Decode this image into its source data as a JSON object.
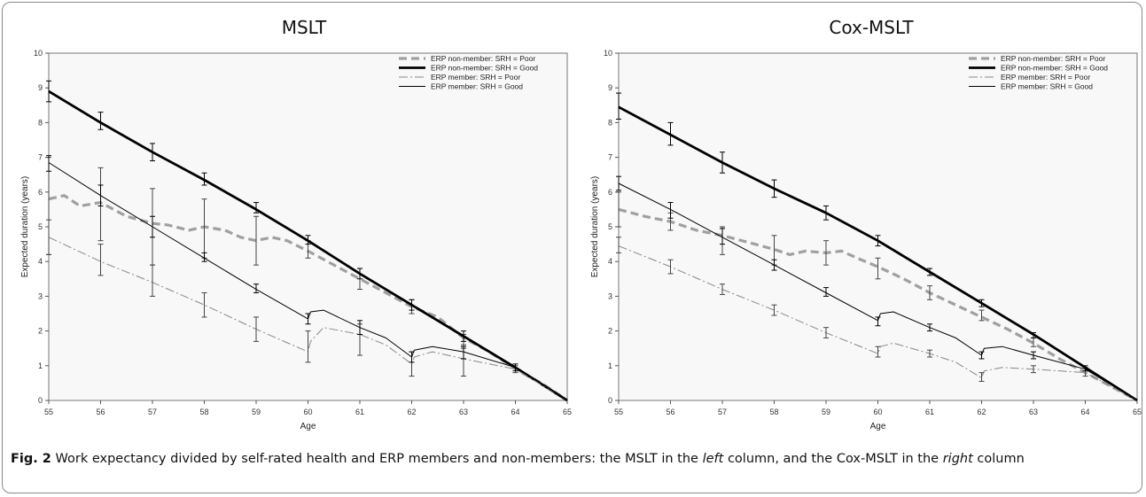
{
  "figure": {
    "caption_label": "Fig. 2",
    "caption_text_1": " Work expectancy divided by self-rated health and ERP members and non-members: the MSLT in the ",
    "caption_em_1": "left",
    "caption_text_2": " column, and the Cox-MSLT in the ",
    "caption_em_2": "right",
    "caption_text_3": " column"
  },
  "chart_data": [
    {
      "type": "line",
      "title": "MSLT",
      "xlabel": "Age",
      "ylabel": "Expected duration (years)",
      "xlim": [
        55,
        65
      ],
      "ylim": [
        0,
        10
      ],
      "xticks": [
        "55",
        "56",
        "57",
        "58",
        "59",
        "60",
        "61",
        "62",
        "63",
        "64",
        "65"
      ],
      "yticks": [
        "0",
        "1",
        "2",
        "3",
        "4",
        "5",
        "6",
        "7",
        "8",
        "9",
        "10"
      ],
      "legend_position": "top-right",
      "series": [
        {
          "name": "ERP non-member: SRH = Poor",
          "style": "dashed-thick",
          "color": "#a0a0a0",
          "x": [
            55,
            55.3,
            55.6,
            56,
            56.5,
            57,
            57.3,
            57.7,
            58,
            58.4,
            58.7,
            59,
            59.3,
            59.6,
            60,
            60.5,
            61,
            61.5,
            62,
            62.5,
            63,
            63.5,
            64,
            64.5,
            65
          ],
          "y": [
            5.8,
            5.9,
            5.6,
            5.7,
            5.3,
            5.1,
            5.05,
            4.9,
            5.0,
            4.9,
            4.7,
            4.6,
            4.7,
            4.6,
            4.3,
            3.9,
            3.5,
            3.1,
            2.7,
            2.4,
            1.8,
            1.4,
            0.9,
            0.5,
            0.0
          ],
          "errors": [
            {
              "x": 55,
              "lo": 4.2,
              "hi": 7.0
            },
            {
              "x": 56,
              "lo": 4.6,
              "hi": 6.7
            },
            {
              "x": 57,
              "lo": 3.9,
              "hi": 6.1
            },
            {
              "x": 58,
              "lo": 4.1,
              "hi": 5.8
            },
            {
              "x": 59,
              "lo": 3.9,
              "hi": 5.3
            },
            {
              "x": 60,
              "lo": 4.1,
              "hi": 4.6
            },
            {
              "x": 61,
              "lo": 3.2,
              "hi": 3.8
            },
            {
              "x": 62,
              "lo": 2.5,
              "hi": 2.9
            },
            {
              "x": 63,
              "lo": 1.5,
              "hi": 1.9
            },
            {
              "x": 64,
              "lo": 0.8,
              "hi": 1.0
            }
          ]
        },
        {
          "name": "ERP non-member: SRH = Good",
          "style": "solid-thick",
          "color": "#000000",
          "x": [
            55,
            56,
            57,
            58,
            59,
            60,
            61,
            62,
            63,
            64,
            65
          ],
          "y": [
            8.9,
            8.0,
            7.15,
            6.35,
            5.5,
            4.6,
            3.65,
            2.75,
            1.85,
            0.95,
            0.0
          ],
          "errors": [
            {
              "x": 55,
              "lo": 8.6,
              "hi": 9.2
            },
            {
              "x": 56,
              "lo": 7.8,
              "hi": 8.3
            },
            {
              "x": 57,
              "lo": 6.9,
              "hi": 7.4
            },
            {
              "x": 58,
              "lo": 6.2,
              "hi": 6.55
            },
            {
              "x": 59,
              "lo": 5.4,
              "hi": 5.7
            },
            {
              "x": 60,
              "lo": 4.5,
              "hi": 4.75
            },
            {
              "x": 61,
              "lo": 3.5,
              "hi": 3.8
            },
            {
              "x": 62,
              "lo": 2.6,
              "hi": 2.9
            },
            {
              "x": 63,
              "lo": 1.7,
              "hi": 2.0
            },
            {
              "x": 64,
              "lo": 0.85,
              "hi": 1.05
            }
          ]
        },
        {
          "name": "ERP member: SRH = Poor",
          "style": "dashdot-thin",
          "color": "#888888",
          "x": [
            55,
            56,
            57,
            58,
            59,
            60,
            60.05,
            60.3,
            61,
            61.5,
            62,
            62.05,
            62.4,
            63,
            64,
            65
          ],
          "y": [
            4.7,
            4.0,
            3.4,
            2.75,
            2.05,
            1.4,
            1.7,
            2.1,
            1.9,
            1.6,
            1.05,
            1.25,
            1.4,
            1.2,
            0.9,
            0.0
          ],
          "errors": [
            {
              "x": 55,
              "lo": 4.2,
              "hi": 5.2
            },
            {
              "x": 56,
              "lo": 3.6,
              "hi": 4.5
            },
            {
              "x": 57,
              "lo": 3.0,
              "hi": 3.9
            },
            {
              "x": 58,
              "lo": 2.4,
              "hi": 3.1
            },
            {
              "x": 59,
              "lo": 1.7,
              "hi": 2.4
            },
            {
              "x": 60,
              "lo": 1.1,
              "hi": 2.0
            },
            {
              "x": 61,
              "lo": 1.3,
              "hi": 2.2
            },
            {
              "x": 62,
              "lo": 0.7,
              "hi": 1.4
            },
            {
              "x": 63,
              "lo": 0.7,
              "hi": 1.6
            }
          ]
        },
        {
          "name": "ERP member: SRH = Good",
          "style": "solid-thin",
          "color": "#000000",
          "x": [
            55,
            56,
            57,
            58,
            59,
            60,
            60.05,
            60.3,
            61,
            61.5,
            62,
            62.05,
            62.4,
            63,
            64,
            65
          ],
          "y": [
            6.85,
            5.9,
            5.0,
            4.1,
            3.2,
            2.35,
            2.55,
            2.6,
            2.1,
            1.8,
            1.25,
            1.45,
            1.55,
            1.4,
            0.95,
            0.0
          ],
          "errors": [
            {
              "x": 55,
              "lo": 6.6,
              "hi": 7.05
            },
            {
              "x": 56,
              "lo": 5.6,
              "hi": 6.2
            },
            {
              "x": 57,
              "lo": 4.7,
              "hi": 5.3
            },
            {
              "x": 58,
              "lo": 4.0,
              "hi": 4.25
            },
            {
              "x": 59,
              "lo": 3.1,
              "hi": 3.35
            },
            {
              "x": 60,
              "lo": 2.2,
              "hi": 2.5
            },
            {
              "x": 61,
              "lo": 1.9,
              "hi": 2.3
            },
            {
              "x": 62,
              "lo": 1.1,
              "hi": 1.4
            },
            {
              "x": 63,
              "lo": 1.2,
              "hi": 1.55
            }
          ]
        }
      ]
    },
    {
      "type": "line",
      "title": "Cox-MSLT",
      "xlabel": "Age",
      "ylabel": "Expected duration (years)",
      "xlim": [
        55,
        65
      ],
      "ylim": [
        0,
        10
      ],
      "xticks": [
        "55",
        "56",
        "57",
        "58",
        "59",
        "60",
        "61",
        "62",
        "63",
        "64",
        "65"
      ],
      "yticks": [
        "0",
        "1",
        "2",
        "3",
        "4",
        "5",
        "6",
        "7",
        "8",
        "9",
        "10"
      ],
      "legend_position": "top-right",
      "series": [
        {
          "name": "ERP non-member: SRH = Poor",
          "style": "dashed-thick",
          "color": "#a0a0a0",
          "x": [
            55,
            55.5,
            56,
            56.5,
            57,
            57.5,
            58,
            58.3,
            58.6,
            59,
            59.3,
            59.6,
            60,
            60.5,
            61,
            61.5,
            62,
            62.5,
            63,
            63.5,
            64,
            64.5,
            65
          ],
          "y": [
            5.5,
            5.3,
            5.15,
            4.9,
            4.75,
            4.55,
            4.35,
            4.2,
            4.3,
            4.25,
            4.3,
            4.1,
            3.85,
            3.5,
            3.1,
            2.75,
            2.4,
            2.05,
            1.65,
            1.2,
            0.8,
            0.4,
            0.0
          ],
          "errors": [
            {
              "x": 55,
              "lo": 5.0,
              "hi": 6.0
            },
            {
              "x": 56,
              "lo": 4.9,
              "hi": 5.4
            },
            {
              "x": 57,
              "lo": 4.2,
              "hi": 5.0
            },
            {
              "x": 58,
              "lo": 3.9,
              "hi": 4.75
            },
            {
              "x": 59,
              "lo": 3.9,
              "hi": 4.6
            },
            {
              "x": 60,
              "lo": 3.5,
              "hi": 4.1
            },
            {
              "x": 61,
              "lo": 2.9,
              "hi": 3.3
            },
            {
              "x": 62,
              "lo": 2.3,
              "hi": 2.6
            },
            {
              "x": 63,
              "lo": 1.55,
              "hi": 1.8
            },
            {
              "x": 64,
              "lo": 0.7,
              "hi": 0.95
            }
          ]
        },
        {
          "name": "ERP non-member: SRH = Good",
          "style": "solid-thick",
          "color": "#000000",
          "x": [
            55,
            56,
            57,
            58,
            59,
            60,
            61,
            62,
            63,
            64,
            65
          ],
          "y": [
            8.45,
            7.65,
            6.85,
            6.1,
            5.4,
            4.6,
            3.7,
            2.8,
            1.9,
            0.95,
            0.0
          ],
          "errors": [
            {
              "x": 55,
              "lo": 8.1,
              "hi": 8.85
            },
            {
              "x": 56,
              "lo": 7.35,
              "hi": 8.0
            },
            {
              "x": 57,
              "lo": 6.55,
              "hi": 7.15
            },
            {
              "x": 58,
              "lo": 5.85,
              "hi": 6.35
            },
            {
              "x": 59,
              "lo": 5.2,
              "hi": 5.6
            },
            {
              "x": 60,
              "lo": 4.45,
              "hi": 4.75
            },
            {
              "x": 61,
              "lo": 3.6,
              "hi": 3.8
            },
            {
              "x": 62,
              "lo": 2.7,
              "hi": 2.9
            },
            {
              "x": 63,
              "lo": 1.8,
              "hi": 1.95
            },
            {
              "x": 64,
              "lo": 0.85,
              "hi": 1.0
            }
          ]
        },
        {
          "name": "ERP member: SRH = Poor",
          "style": "dashdot-thin",
          "color": "#888888",
          "x": [
            55,
            56,
            57,
            58,
            59,
            60,
            60.05,
            60.3,
            61,
            61.5,
            62,
            62.05,
            62.4,
            63,
            64,
            65
          ],
          "y": [
            4.45,
            3.85,
            3.2,
            2.6,
            1.95,
            1.35,
            1.55,
            1.65,
            1.35,
            1.1,
            0.65,
            0.85,
            0.95,
            0.9,
            0.8,
            0.0
          ],
          "errors": [
            {
              "x": 55,
              "lo": 4.25,
              "hi": 4.7
            },
            {
              "x": 56,
              "lo": 3.65,
              "hi": 4.05
            },
            {
              "x": 57,
              "lo": 3.05,
              "hi": 3.35
            },
            {
              "x": 58,
              "lo": 2.45,
              "hi": 2.75
            },
            {
              "x": 59,
              "lo": 1.8,
              "hi": 2.1
            },
            {
              "x": 60,
              "lo": 1.25,
              "hi": 1.55
            },
            {
              "x": 61,
              "lo": 1.25,
              "hi": 1.45
            },
            {
              "x": 62,
              "lo": 0.55,
              "hi": 0.8
            },
            {
              "x": 63,
              "lo": 0.8,
              "hi": 1.0
            }
          ]
        },
        {
          "name": "ERP member: SRH = Good",
          "style": "solid-thin",
          "color": "#000000",
          "x": [
            55,
            56,
            57,
            58,
            59,
            60,
            60.05,
            60.3,
            61,
            61.5,
            62,
            62.05,
            62.4,
            63,
            64,
            65
          ],
          "y": [
            6.25,
            5.5,
            4.7,
            3.9,
            3.1,
            2.3,
            2.5,
            2.55,
            2.1,
            1.8,
            1.3,
            1.5,
            1.55,
            1.3,
            0.9,
            0.0
          ],
          "errors": [
            {
              "x": 55,
              "lo": 6.05,
              "hi": 6.45
            },
            {
              "x": 56,
              "lo": 5.25,
              "hi": 5.7
            },
            {
              "x": 57,
              "lo": 4.5,
              "hi": 4.95
            },
            {
              "x": 58,
              "lo": 3.75,
              "hi": 4.05
            },
            {
              "x": 59,
              "lo": 3.0,
              "hi": 3.25
            },
            {
              "x": 60,
              "lo": 2.15,
              "hi": 2.4
            },
            {
              "x": 61,
              "lo": 2.0,
              "hi": 2.2
            },
            {
              "x": 62,
              "lo": 1.2,
              "hi": 1.4
            },
            {
              "x": 63,
              "lo": 1.2,
              "hi": 1.4
            }
          ]
        }
      ]
    }
  ]
}
